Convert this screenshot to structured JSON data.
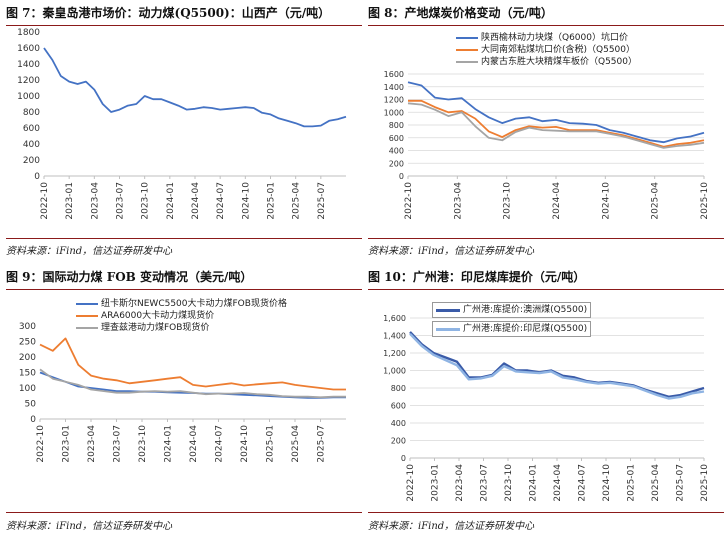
{
  "chart_data": [
    {
      "type": "line",
      "title": "图 7：秦皇岛港市场价：动力煤(Q5500)：山西产（元/吨）",
      "ylim": [
        0,
        1800
      ],
      "yticks": [
        0,
        200,
        400,
        600,
        800,
        1000,
        1200,
        1400,
        1600,
        1800
      ],
      "xlim": [
        "2022-10",
        "2025-10"
      ],
      "xticks": [
        "2022-10",
        "2023-01",
        "2023-04",
        "2023-07",
        "2023-10",
        "2024-01",
        "2024-04",
        "2024-07",
        "2024-10",
        "2025-01",
        "2025-04",
        "2025-07"
      ],
      "series": [
        {
          "color": "#4472c4",
          "x": [
            "2022-10",
            "2022-11",
            "2022-12",
            "2023-01",
            "2023-02",
            "2023-03",
            "2023-04",
            "2023-05",
            "2023-06",
            "2023-07",
            "2023-08",
            "2023-09",
            "2023-10",
            "2023-11",
            "2023-12",
            "2024-01",
            "2024-02",
            "2024-03",
            "2024-04",
            "2024-05",
            "2024-06",
            "2024-07",
            "2024-08",
            "2024-09",
            "2024-10",
            "2024-11",
            "2024-12",
            "2025-01",
            "2025-02",
            "2025-03",
            "2025-04",
            "2025-05",
            "2025-06",
            "2025-07",
            "2025-08",
            "2025-09",
            "2025-10"
          ],
          "values": [
            1600,
            1450,
            1250,
            1180,
            1150,
            1180,
            1080,
            900,
            800,
            830,
            880,
            900,
            1000,
            960,
            960,
            920,
            880,
            830,
            840,
            860,
            850,
            830,
            840,
            850,
            860,
            850,
            790,
            770,
            720,
            690,
            660,
            620,
            620,
            630,
            690,
            710,
            740
          ]
        }
      ],
      "source": "资料来源：iFind，信达证券研发中心"
    },
    {
      "type": "line",
      "title": "图 8：产地煤炭价格变动（元/吨）",
      "ylim": [
        0,
        1600
      ],
      "yticks": [
        0,
        200,
        400,
        600,
        800,
        1000,
        1200,
        1400,
        1600
      ],
      "xlim": [
        "2022-10",
        "2025-10"
      ],
      "xticks": [
        "2022-10",
        "2023-04",
        "2023-10",
        "2024-04",
        "2024-10",
        "2025-04",
        "2025-10"
      ],
      "series": [
        {
          "name": "陕西榆林动力块煤（Q6000）坑口价",
          "color": "#4472c4",
          "values": [
            1470,
            1420,
            1230,
            1200,
            1220,
            1050,
            920,
            830,
            900,
            920,
            860,
            880,
            830,
            820,
            800,
            720,
            680,
            620,
            560,
            530,
            590,
            620,
            680
          ]
        },
        {
          "name": "大同南郊粘煤坑口价(含税)（Q5500）",
          "color": "#ed7d31",
          "values": [
            1180,
            1180,
            1080,
            1000,
            1020,
            900,
            700,
            610,
            720,
            780,
            760,
            770,
            720,
            720,
            720,
            680,
            640,
            580,
            520,
            460,
            500,
            520,
            560
          ]
        },
        {
          "name": "内蒙古东胜大块精煤车板价（Q5500）",
          "color": "#a5a5a5",
          "values": [
            1140,
            1120,
            1040,
            940,
            1000,
            780,
            600,
            560,
            690,
            760,
            720,
            710,
            700,
            700,
            700,
            660,
            620,
            560,
            500,
            440,
            470,
            490,
            520
          ]
        }
      ],
      "source": "资料来源：iFind，信达证券研发中心"
    },
    {
      "type": "line",
      "title": "图 9：国际动力煤 FOB 变动情况（美元/吨）",
      "ylim": [
        0,
        300
      ],
      "yticks": [
        0,
        50,
        100,
        150,
        200,
        250,
        300
      ],
      "xlim": [
        "2022-10",
        "2025-10"
      ],
      "xticks": [
        "2022-10",
        "2023-01",
        "2023-04",
        "2023-07",
        "2023-10",
        "2024-01",
        "2024-04",
        "2024-07",
        "2024-10",
        "2025-01",
        "2025-04",
        "2025-07"
      ],
      "series": [
        {
          "name": "纽卡斯尔NEWC5500大卡动力煤FOB现货价格",
          "color": "#4472c4",
          "values": [
            150,
            135,
            120,
            105,
            100,
            95,
            90,
            90,
            88,
            88,
            86,
            85,
            84,
            82,
            82,
            80,
            78,
            76,
            74,
            72,
            70,
            68,
            68,
            70,
            70
          ]
        },
        {
          "name": "ARA6000大卡动力煤现货价",
          "color": "#ed7d31",
          "values": [
            240,
            220,
            260,
            175,
            140,
            130,
            125,
            115,
            120,
            125,
            130,
            135,
            110,
            105,
            110,
            115,
            108,
            112,
            115,
            118,
            110,
            105,
            100,
            95,
            95
          ]
        },
        {
          "name": "理查兹港动力煤FOB现货价",
          "color": "#a5a5a5",
          "values": [
            160,
            130,
            120,
            110,
            95,
            90,
            85,
            85,
            88,
            90,
            88,
            90,
            85,
            80,
            82,
            82,
            84,
            80,
            78,
            74,
            72,
            72,
            70,
            72,
            72
          ]
        }
      ],
      "source": "资料来源：iFind，信达证券研发中心"
    },
    {
      "type": "line",
      "title": "图 10：广州港：印尼煤库提价（元/吨）",
      "ylim": [
        0,
        1600
      ],
      "yticks": [
        "0",
        "200",
        "400",
        "600",
        "800",
        "1,000",
        "1,200",
        "1,400",
        "1,600"
      ],
      "xlim": [
        "2022-10",
        "2025-10"
      ],
      "xticks": [
        "2022-10",
        "2023-01",
        "2023-04",
        "2023-07",
        "2023-10",
        "2024-01",
        "2024-04",
        "2024-07",
        "2024-10",
        "2025-01",
        "2025-04",
        "2025-07",
        "2025-10"
      ],
      "series": [
        {
          "name": "广州港:库提价:澳洲煤(Q5500)",
          "color": "#3a5ba8",
          "values": [
            1440,
            1300,
            1200,
            1150,
            1100,
            920,
            920,
            950,
            1080,
            1000,
            1000,
            980,
            1000,
            940,
            920,
            880,
            860,
            870,
            850,
            830,
            780,
            740,
            700,
            720,
            760,
            800
          ]
        },
        {
          "name": "广州港:库提价:印尼煤(Q5500)",
          "color": "#8fb4e3",
          "values": [
            1420,
            1280,
            1180,
            1120,
            1060,
            900,
            910,
            940,
            1050,
            990,
            980,
            970,
            990,
            920,
            900,
            870,
            850,
            860,
            840,
            820,
            770,
            720,
            680,
            700,
            740,
            760
          ]
        }
      ],
      "source": "资料来源：iFind，信达证券研发中心"
    }
  ]
}
